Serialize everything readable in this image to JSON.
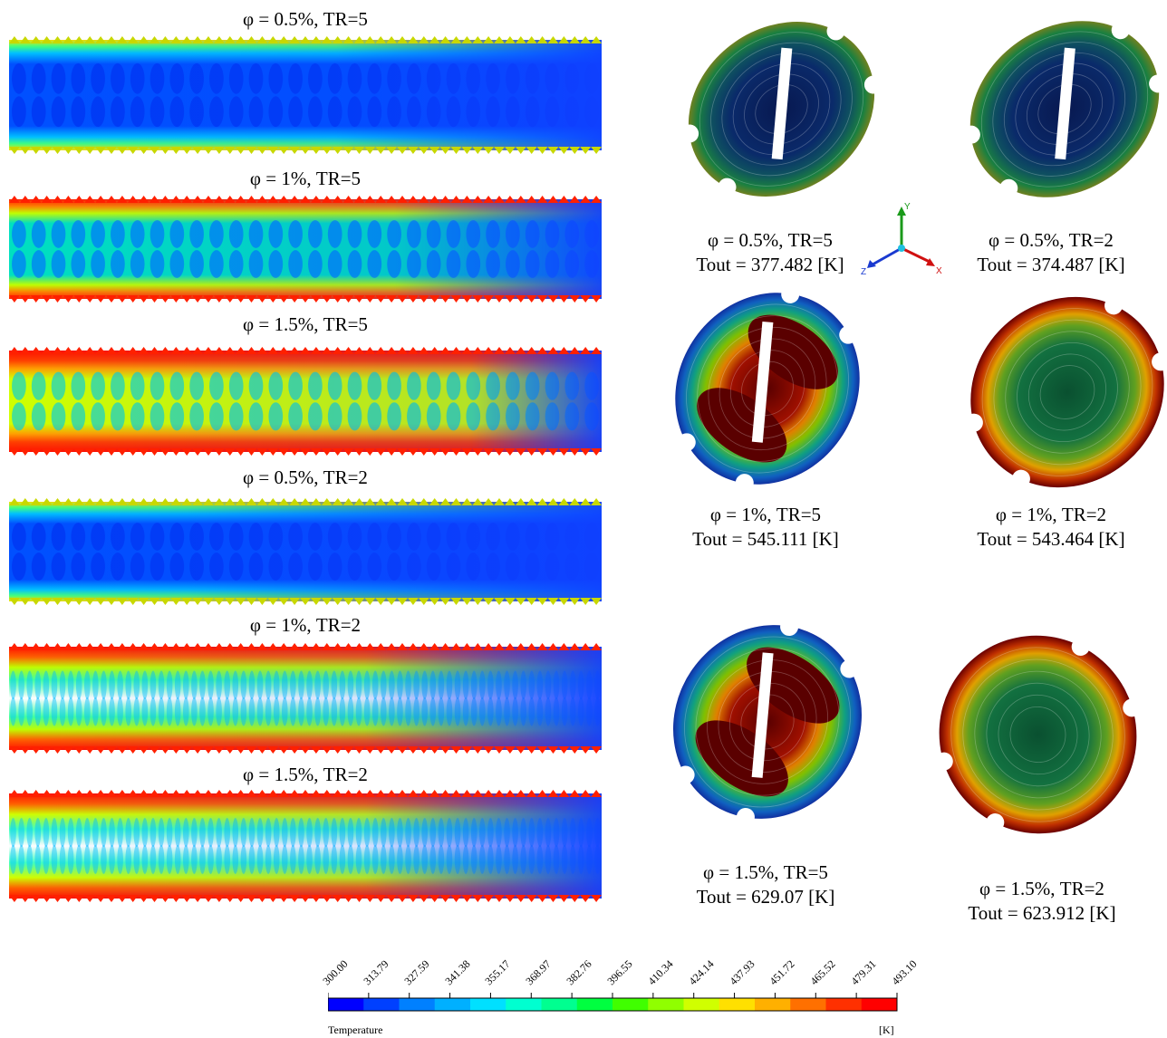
{
  "strips": [
    {
      "label": "φ = 0.5%, TR=5"
    },
    {
      "label": "φ = 1%, TR=5"
    },
    {
      "label": "φ = 1.5%, TR=5"
    },
    {
      "label": "φ = 0.5%, TR=2"
    },
    {
      "label": "φ = 1%, TR=2"
    },
    {
      "label": "φ = 1.5%, TR=2"
    }
  ],
  "sections": [
    {
      "label": "φ = 0.5%, TR=5",
      "tout": "Tout = 377.482 [K]"
    },
    {
      "label": "φ = 0.5%, TR=2",
      "tout": "Tout = 374.487 [K]"
    },
    {
      "label": "φ = 1%, TR=5",
      "tout": "Tout = 545.111 [K]"
    },
    {
      "label": "φ = 1%, TR=2",
      "tout": "Tout = 543.464 [K]"
    },
    {
      "label": "φ = 1.5%, TR=5",
      "tout": "Tout = 629.07 [K]"
    },
    {
      "label": "φ = 1.5%, TR=2",
      "tout": "Tout = 623.912 [K]"
    }
  ],
  "axes": {
    "x": "X",
    "y": "Y",
    "z": "Z"
  },
  "legend": {
    "title": "Temperature",
    "unit": "[K]",
    "ticks": [
      "300.00",
      "313.79",
      "327.59",
      "341.38",
      "355.17",
      "368.97",
      "382.76",
      "396.55",
      "410.34",
      "424.14",
      "437.93",
      "451.72",
      "465.52",
      "479.31",
      "493.10"
    ],
    "colors": [
      "#0000ff",
      "#0040ff",
      "#0080ff",
      "#00b0ff",
      "#00e0ff",
      "#00ffd0",
      "#00ff90",
      "#00ff40",
      "#40ff00",
      "#90ff00",
      "#d0ff00",
      "#ffe000",
      "#ffb000",
      "#ff7000",
      "#ff3000",
      "#ff0000"
    ]
  }
}
